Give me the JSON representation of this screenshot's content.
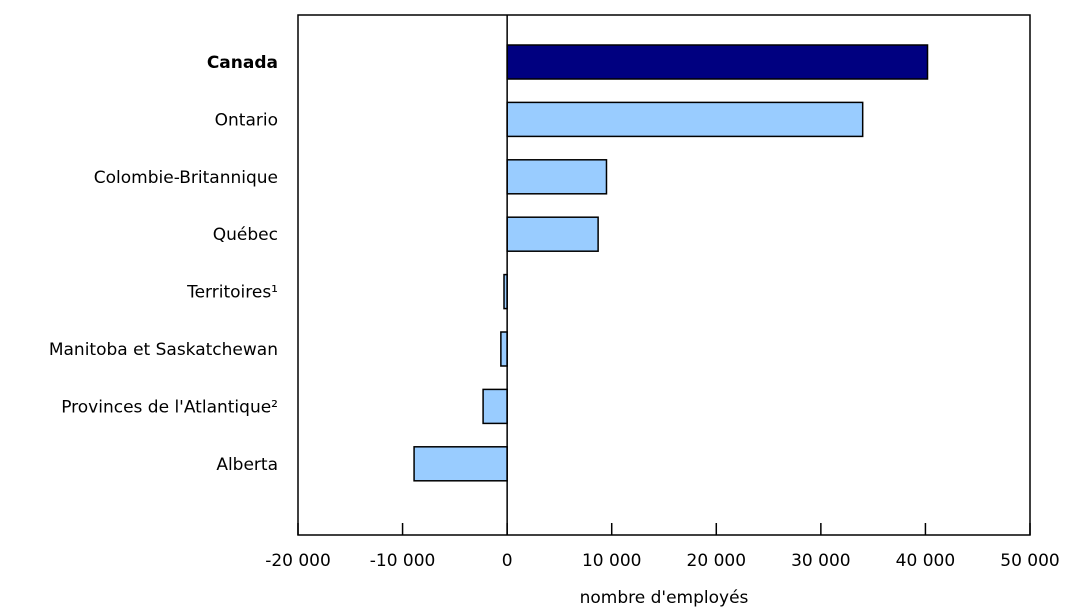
{
  "chart_data": {
    "type": "bar",
    "orientation": "horizontal",
    "title": "",
    "xlabel": "nombre d'employés",
    "ylabel": "",
    "xlim": [
      -20000,
      50000
    ],
    "x_ticks": [
      -20000,
      -10000,
      0,
      10000,
      20000,
      30000,
      40000,
      50000
    ],
    "x_tick_labels": [
      "-20 000",
      "-10 000",
      "0",
      "10 000",
      "20 000",
      "30 000",
      "40 000",
      "50 000"
    ],
    "grid": false,
    "categories": [
      "Canada",
      "Ontario",
      "Colombie-Britannique",
      "Québec",
      "Territoires¹",
      "Manitoba et Saskatchewan",
      "Provinces de l'Atlantique²",
      "Alberta"
    ],
    "values": [
      40200,
      34000,
      9500,
      8700,
      -300,
      -600,
      -2300,
      -8900
    ],
    "highlight_category": "Canada",
    "colors": {
      "highlight": "#000080",
      "bar": "#99ccff",
      "stroke": "#000000"
    }
  }
}
